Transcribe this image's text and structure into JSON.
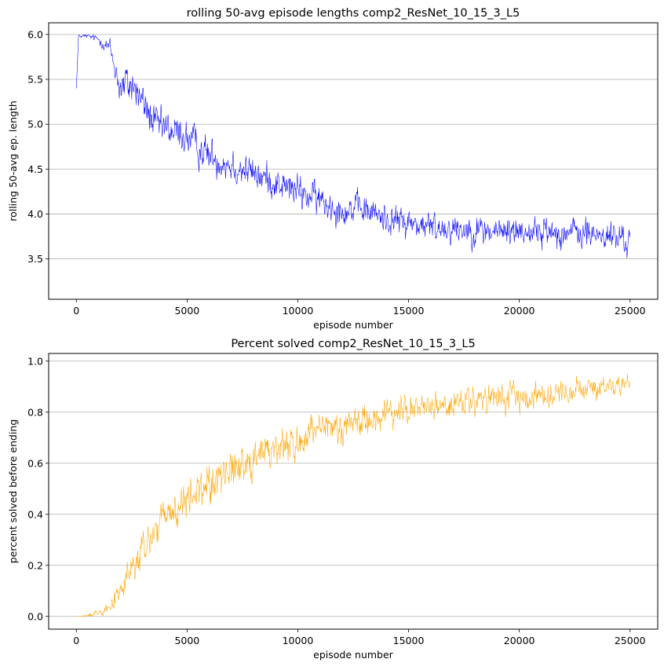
{
  "chart_data": [
    {
      "type": "line",
      "title": "rolling 50-avg episode lengths comp2_ResNet_10_15_3_L5",
      "xlabel": "episode number",
      "ylabel": "rolling 50-avg ep. length",
      "xlim": [
        -1250,
        26250
      ],
      "ylim": [
        3.05,
        6.13
      ],
      "xticks": [
        0,
        5000,
        10000,
        15000,
        20000,
        25000
      ],
      "xtick_labels": [
        "0",
        "5000",
        "10000",
        "15000",
        "20000",
        "25000"
      ],
      "yticks": [
        3.5,
        4.0,
        4.5,
        5.0,
        5.5,
        6.0
      ],
      "ytick_labels": [
        "3.5",
        "4.0",
        "4.5",
        "5.0",
        "5.5",
        "6.0"
      ],
      "grid": "y",
      "color": "#0000ff",
      "trend": {
        "x": [
          0,
          100,
          500,
          1000,
          1500,
          2000,
          2500,
          3000,
          3500,
          4000,
          5000,
          6000,
          7000,
          8000,
          9000,
          10000,
          11000,
          12000,
          13000,
          14000,
          15000,
          16000,
          17000,
          18000,
          19000,
          20000,
          21000,
          22000,
          23000,
          24000,
          25000
        ],
        "y": [
          5.4,
          5.98,
          5.98,
          5.95,
          5.85,
          5.4,
          5.45,
          5.25,
          5.0,
          4.95,
          4.85,
          4.65,
          4.55,
          4.45,
          4.35,
          4.25,
          4.15,
          4.05,
          4.05,
          3.95,
          3.9,
          3.85,
          3.85,
          3.82,
          3.8,
          3.82,
          3.8,
          3.8,
          3.78,
          3.75,
          3.7
        ],
        "noise": [
          0.0,
          0.02,
          0.04,
          0.06,
          0.15,
          0.3,
          0.3,
          0.28,
          0.28,
          0.27,
          0.26,
          0.26,
          0.25,
          0.24,
          0.24,
          0.24,
          0.24,
          0.22,
          0.22,
          0.22,
          0.22,
          0.22,
          0.22,
          0.22,
          0.22,
          0.22,
          0.22,
          0.22,
          0.22,
          0.22,
          0.22
        ],
        "floor": 3.2,
        "ceil": 6.0,
        "points": 1250
      }
    },
    {
      "type": "line",
      "title": "Percent solved comp2_ResNet_10_15_3_L5",
      "xlabel": "episode number",
      "ylabel": "percent solved before ending",
      "xlim": [
        -1250,
        26250
      ],
      "ylim": [
        -0.05,
        1.03
      ],
      "xticks": [
        0,
        5000,
        10000,
        15000,
        20000,
        25000
      ],
      "xtick_labels": [
        "0",
        "5000",
        "10000",
        "15000",
        "20000",
        "25000"
      ],
      "yticks": [
        0.0,
        0.2,
        0.4,
        0.6,
        0.8,
        1.0
      ],
      "ytick_labels": [
        "0.0",
        "0.2",
        "0.4",
        "0.6",
        "0.8",
        "1.0"
      ],
      "grid": "y",
      "color": "#ffa500",
      "trend": {
        "x": [
          0,
          500,
          1000,
          1500,
          2000,
          2500,
          3000,
          3500,
          4000,
          5000,
          6000,
          7000,
          8000,
          9000,
          10000,
          11000,
          12000,
          13000,
          14000,
          15000,
          16000,
          17000,
          18000,
          19000,
          20000,
          21000,
          22000,
          23000,
          24000,
          25000
        ],
        "y": [
          0.0,
          0.0,
          0.02,
          0.04,
          0.1,
          0.18,
          0.25,
          0.33,
          0.38,
          0.45,
          0.52,
          0.58,
          0.62,
          0.66,
          0.68,
          0.72,
          0.75,
          0.77,
          0.79,
          0.81,
          0.82,
          0.83,
          0.84,
          0.85,
          0.86,
          0.87,
          0.88,
          0.89,
          0.89,
          0.92
        ],
        "noise": [
          0.0,
          0.01,
          0.02,
          0.03,
          0.07,
          0.09,
          0.1,
          0.1,
          0.1,
          0.1,
          0.11,
          0.11,
          0.1,
          0.1,
          0.1,
          0.1,
          0.09,
          0.09,
          0.08,
          0.08,
          0.07,
          0.07,
          0.07,
          0.07,
          0.07,
          0.06,
          0.06,
          0.06,
          0.05,
          0.04
        ],
        "floor": 0.0,
        "ceil": 0.98,
        "points": 1250
      }
    }
  ]
}
